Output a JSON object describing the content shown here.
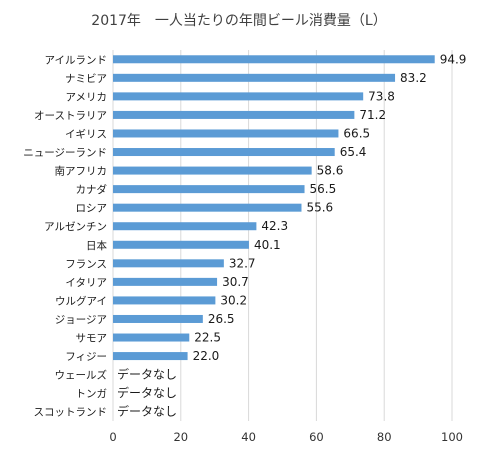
{
  "chart_data": {
    "type": "bar",
    "orientation": "horizontal",
    "title": "2017年　一人当たりの年間ビール消費量（L）",
    "xlabel": "",
    "ylabel": "",
    "xlim": [
      0,
      100
    ],
    "xticks": [
      0,
      20,
      40,
      60,
      80,
      100
    ],
    "grid": "vertical",
    "legend": "none",
    "bar_color": "#5b9bd5",
    "categories": [
      "アイルランド",
      "ナミビア",
      "アメリカ",
      "オーストラリア",
      "イギリス",
      "ニュージーランド",
      "南アフリカ",
      "カナダ",
      "ロシア",
      "アルゼンチン",
      "日本",
      "フランス",
      "イタリア",
      "ウルグアイ",
      "ジョージア",
      "サモア",
      "フィジー",
      "ウェールズ",
      "トンガ",
      "スコットランド"
    ],
    "values": [
      94.9,
      83.2,
      73.8,
      71.2,
      66.5,
      65.4,
      58.6,
      56.5,
      55.6,
      42.3,
      40.1,
      32.7,
      30.7,
      30.2,
      26.5,
      22.5,
      22.0,
      null,
      null,
      null
    ],
    "value_labels": [
      "94.9",
      "83.2",
      "73.8",
      "71.2",
      "66.5",
      "65.4",
      "58.6",
      "56.5",
      "55.6",
      "42.3",
      "40.1",
      "32.7",
      "30.7",
      "30.2",
      "26.5",
      "22.5",
      "22.0",
      "データなし",
      "データなし",
      "データなし"
    ]
  }
}
